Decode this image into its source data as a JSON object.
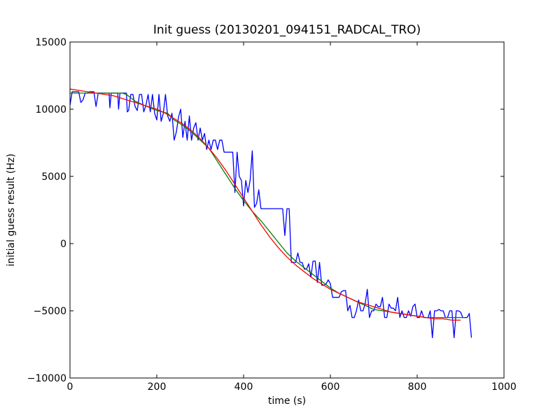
{
  "chart_data": {
    "type": "line",
    "title": "Init guess (20130201_094151_RADCAL_TRO)",
    "xlabel": "time (s)",
    "ylabel": "initial guess result (Hz)",
    "xlim": [
      0,
      1000
    ],
    "ylim": [
      -10000,
      15000
    ],
    "xticks": [
      0,
      200,
      400,
      600,
      800,
      1000
    ],
    "yticks": [
      -10000,
      -5000,
      0,
      5000,
      10000,
      15000
    ],
    "xtick_labels": [
      "0",
      "200",
      "400",
      "600",
      "800",
      "1000"
    ],
    "ytick_labels": [
      "−10000",
      "−5000",
      "0",
      "5000",
      "10000",
      "15000"
    ],
    "grid": false,
    "legend": "none",
    "series": [
      {
        "color": "#0000ff",
        "points": [
          [
            0,
            10300
          ],
          [
            5,
            11300
          ],
          [
            20,
            11300
          ],
          [
            25,
            10500
          ],
          [
            30,
            10700
          ],
          [
            35,
            11200
          ],
          [
            40,
            11200
          ],
          [
            45,
            11300
          ],
          [
            55,
            11300
          ],
          [
            60,
            10200
          ],
          [
            65,
            11200
          ],
          [
            90,
            11200
          ],
          [
            92,
            10100
          ],
          [
            95,
            11200
          ],
          [
            110,
            11200
          ],
          [
            112,
            10000
          ],
          [
            115,
            11200
          ],
          [
            125,
            11200
          ],
          [
            130,
            11200
          ],
          [
            132,
            9800
          ],
          [
            135,
            9900
          ],
          [
            140,
            11100
          ],
          [
            145,
            11100
          ],
          [
            150,
            10200
          ],
          [
            155,
            9900
          ],
          [
            160,
            11100
          ],
          [
            165,
            11100
          ],
          [
            170,
            9800
          ],
          [
            175,
            10300
          ],
          [
            180,
            11100
          ],
          [
            185,
            9800
          ],
          [
            190,
            11100
          ],
          [
            195,
            9700
          ],
          [
            200,
            9200
          ],
          [
            205,
            11100
          ],
          [
            210,
            9100
          ],
          [
            215,
            9700
          ],
          [
            220,
            11100
          ],
          [
            225,
            9500
          ],
          [
            230,
            9100
          ],
          [
            235,
            9700
          ],
          [
            240,
            7700
          ],
          [
            245,
            8300
          ],
          [
            250,
            9400
          ],
          [
            255,
            10000
          ],
          [
            260,
            7900
          ],
          [
            265,
            9100
          ],
          [
            270,
            7700
          ],
          [
            275,
            9500
          ],
          [
            280,
            7700
          ],
          [
            285,
            8600
          ],
          [
            290,
            9000
          ],
          [
            295,
            7700
          ],
          [
            300,
            8600
          ],
          [
            305,
            7700
          ],
          [
            310,
            8200
          ],
          [
            315,
            7000
          ],
          [
            320,
            7700
          ],
          [
            325,
            7000
          ],
          [
            330,
            7700
          ],
          [
            335,
            7700
          ],
          [
            340,
            7000
          ],
          [
            345,
            7700
          ],
          [
            350,
            7700
          ],
          [
            355,
            6800
          ],
          [
            365,
            6800
          ],
          [
            375,
            6800
          ],
          [
            380,
            3800
          ],
          [
            385,
            6800
          ],
          [
            390,
            5000
          ],
          [
            395,
            4700
          ],
          [
            400,
            2800
          ],
          [
            405,
            4700
          ],
          [
            410,
            3800
          ],
          [
            415,
            4700
          ],
          [
            420,
            6900
          ],
          [
            425,
            2700
          ],
          [
            430,
            3000
          ],
          [
            435,
            4000
          ],
          [
            440,
            2600
          ],
          [
            450,
            2600
          ],
          [
            460,
            2600
          ],
          [
            470,
            2600
          ],
          [
            480,
            2600
          ],
          [
            490,
            2600
          ],
          [
            495,
            600
          ],
          [
            500,
            2600
          ],
          [
            505,
            2600
          ],
          [
            510,
            -1400
          ],
          [
            520,
            -1400
          ],
          [
            525,
            -700
          ],
          [
            530,
            -1400
          ],
          [
            535,
            -1400
          ],
          [
            540,
            -1900
          ],
          [
            545,
            -1900
          ],
          [
            550,
            -1500
          ],
          [
            555,
            -2500
          ],
          [
            560,
            -1300
          ],
          [
            565,
            -1300
          ],
          [
            570,
            -2900
          ],
          [
            575,
            -1400
          ],
          [
            580,
            -3100
          ],
          [
            585,
            -3100
          ],
          [
            590,
            -3000
          ],
          [
            595,
            -2700
          ],
          [
            600,
            -3000
          ],
          [
            605,
            -4000
          ],
          [
            620,
            -4000
          ],
          [
            625,
            -3600
          ],
          [
            630,
            -3500
          ],
          [
            635,
            -3500
          ],
          [
            640,
            -5000
          ],
          [
            645,
            -4600
          ],
          [
            650,
            -5500
          ],
          [
            655,
            -5500
          ],
          [
            660,
            -5000
          ],
          [
            665,
            -4200
          ],
          [
            670,
            -5000
          ],
          [
            675,
            -5000
          ],
          [
            680,
            -4500
          ],
          [
            685,
            -3400
          ],
          [
            690,
            -5500
          ],
          [
            695,
            -5000
          ],
          [
            700,
            -5000
          ],
          [
            705,
            -4500
          ],
          [
            710,
            -4700
          ],
          [
            715,
            -4700
          ],
          [
            720,
            -4000
          ],
          [
            725,
            -5500
          ],
          [
            730,
            -5500
          ],
          [
            735,
            -4500
          ],
          [
            740,
            -4800
          ],
          [
            745,
            -4800
          ],
          [
            750,
            -5000
          ],
          [
            755,
            -4000
          ],
          [
            760,
            -5500
          ],
          [
            765,
            -5000
          ],
          [
            770,
            -5500
          ],
          [
            775,
            -5500
          ],
          [
            780,
            -5000
          ],
          [
            785,
            -5400
          ],
          [
            790,
            -4700
          ],
          [
            795,
            -4500
          ],
          [
            800,
            -5500
          ],
          [
            805,
            -5500
          ],
          [
            810,
            -5000
          ],
          [
            815,
            -5500
          ],
          [
            820,
            -5500
          ],
          [
            825,
            -5500
          ],
          [
            830,
            -5000
          ],
          [
            835,
            -7000
          ],
          [
            840,
            -5000
          ],
          [
            845,
            -5000
          ],
          [
            850,
            -4900
          ],
          [
            855,
            -5000
          ],
          [
            860,
            -5000
          ],
          [
            865,
            -5500
          ],
          [
            870,
            -5500
          ],
          [
            875,
            -5000
          ],
          [
            880,
            -5000
          ],
          [
            885,
            -7000
          ],
          [
            890,
            -5000
          ],
          [
            895,
            -5000
          ],
          [
            900,
            -5100
          ],
          [
            905,
            -5500
          ],
          [
            910,
            -5500
          ],
          [
            915,
            -5500
          ],
          [
            920,
            -5200
          ],
          [
            925,
            -7000
          ]
        ]
      },
      {
        "color": "#008000",
        "points": [
          [
            0,
            11200
          ],
          [
            30,
            11200
          ],
          [
            60,
            11200
          ],
          [
            90,
            11200
          ],
          [
            120,
            11200
          ],
          [
            130,
            11100
          ],
          [
            150,
            10600
          ],
          [
            170,
            10300
          ],
          [
            200,
            9900
          ],
          [
            225,
            9700
          ],
          [
            240,
            9200
          ],
          [
            260,
            8800
          ],
          [
            280,
            8300
          ],
          [
            300,
            7700
          ],
          [
            320,
            7100
          ],
          [
            340,
            6100
          ],
          [
            360,
            5100
          ],
          [
            380,
            4100
          ],
          [
            400,
            3200
          ],
          [
            420,
            2400
          ],
          [
            440,
            1700
          ],
          [
            460,
            900
          ],
          [
            480,
            100
          ],
          [
            500,
            -700
          ],
          [
            520,
            -1300
          ],
          [
            540,
            -1800
          ],
          [
            560,
            -2300
          ],
          [
            580,
            -2800
          ],
          [
            600,
            -3300
          ],
          [
            620,
            -3700
          ],
          [
            640,
            -4000
          ],
          [
            660,
            -4300
          ],
          [
            680,
            -4600
          ],
          [
            700,
            -4900
          ],
          [
            720,
            -5000
          ],
          [
            740,
            -5100
          ],
          [
            760,
            -5200
          ],
          [
            780,
            -5300
          ],
          [
            800,
            -5400
          ],
          [
            820,
            -5500
          ],
          [
            840,
            -5500
          ],
          [
            860,
            -5500
          ],
          [
            880,
            -5500
          ],
          [
            900,
            -5500
          ],
          [
            910,
            -5500
          ]
        ]
      },
      {
        "color": "#ff0000",
        "points": [
          [
            0,
            11500
          ],
          [
            20,
            11400
          ],
          [
            40,
            11300
          ],
          [
            60,
            11200
          ],
          [
            80,
            11100
          ],
          [
            100,
            11000
          ],
          [
            120,
            10800
          ],
          [
            140,
            10600
          ],
          [
            160,
            10400
          ],
          [
            180,
            10200
          ],
          [
            200,
            10000
          ],
          [
            220,
            9700
          ],
          [
            240,
            9300
          ],
          [
            260,
            8900
          ],
          [
            280,
            8400
          ],
          [
            300,
            7800
          ],
          [
            320,
            7100
          ],
          [
            340,
            6300
          ],
          [
            360,
            5400
          ],
          [
            380,
            4400
          ],
          [
            400,
            3400
          ],
          [
            420,
            2400
          ],
          [
            440,
            1400
          ],
          [
            460,
            500
          ],
          [
            480,
            -300
          ],
          [
            500,
            -1000
          ],
          [
            520,
            -1600
          ],
          [
            540,
            -2100
          ],
          [
            560,
            -2600
          ],
          [
            580,
            -3000
          ],
          [
            600,
            -3400
          ],
          [
            620,
            -3700
          ],
          [
            640,
            -4000
          ],
          [
            660,
            -4300
          ],
          [
            680,
            -4500
          ],
          [
            700,
            -4700
          ],
          [
            720,
            -4900
          ],
          [
            740,
            -5100
          ],
          [
            760,
            -5200
          ],
          [
            780,
            -5300
          ],
          [
            800,
            -5400
          ],
          [
            820,
            -5500
          ],
          [
            840,
            -5600
          ],
          [
            860,
            -5600
          ],
          [
            880,
            -5700
          ],
          [
            900,
            -5700
          ]
        ]
      }
    ]
  }
}
